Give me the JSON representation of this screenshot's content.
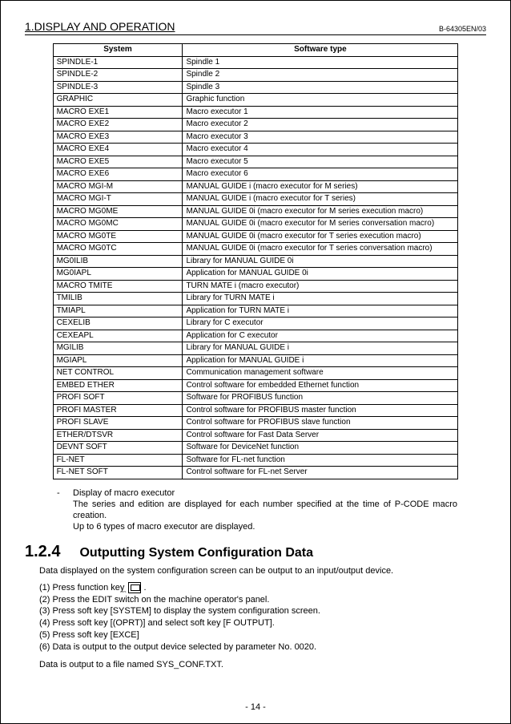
{
  "header": {
    "section_title": "1.DISPLAY AND OPERATION",
    "doc_id": "B-64305EN/03"
  },
  "table": {
    "headers": {
      "col1": "System",
      "col2": "Software type"
    },
    "rows": [
      {
        "sys": "SPINDLE-1",
        "desc": "Spindle 1"
      },
      {
        "sys": "SPINDLE-2",
        "desc": "Spindle 2"
      },
      {
        "sys": "SPINDLE-3",
        "desc": "Spindle 3"
      },
      {
        "sys": "GRAPHIC",
        "desc": "Graphic function"
      },
      {
        "sys": "MACRO EXE1",
        "desc": "Macro executor 1"
      },
      {
        "sys": "MACRO EXE2",
        "desc": "Macro executor 2"
      },
      {
        "sys": "MACRO EXE3",
        "desc": "Macro executor 3"
      },
      {
        "sys": "MACRO EXE4",
        "desc": "Macro executor 4"
      },
      {
        "sys": "MACRO EXE5",
        "desc": "Macro executor 5"
      },
      {
        "sys": "MACRO EXE6",
        "desc": "Macro executor 6"
      },
      {
        "sys": "MACRO MGI-M",
        "desc": "MANUAL GUIDE i (macro executor for M series)"
      },
      {
        "sys": "MACRO MGI-T",
        "desc": "MANUAL GUIDE i (macro executor for T series)"
      },
      {
        "sys": "MACRO MG0ME",
        "desc": "MANUAL GUIDE 0i (macro executor for M series execution macro)"
      },
      {
        "sys": "MACRO MG0MC",
        "desc": "MANUAL GUIDE 0i (macro executor for M series conversation macro)"
      },
      {
        "sys": "MACRO MG0TE",
        "desc": "MANUAL GUIDE 0i (macro executor for T series execution macro)"
      },
      {
        "sys": "MACRO MG0TC",
        "desc": "MANUAL GUIDE 0i (macro executor for T series conversation macro)"
      },
      {
        "sys": "MG0ILIB",
        "desc": "Library for MANUAL GUIDE 0i"
      },
      {
        "sys": "MG0IAPL",
        "desc": "Application for MANUAL GUIDE 0i"
      },
      {
        "sys": "MACRO TMITE",
        "desc": "TURN MATE i (macro executor)"
      },
      {
        "sys": "TMILIB",
        "desc": "Library for TURN MATE i"
      },
      {
        "sys": "TMIAPL",
        "desc": "Application for TURN MATE i"
      },
      {
        "sys": "CEXELIB",
        "desc": "Library for C executor"
      },
      {
        "sys": "CEXEAPL",
        "desc": "Application for C executor"
      },
      {
        "sys": "MGILIB",
        "desc": "Library for MANUAL GUIDE i"
      },
      {
        "sys": "MGIAPL",
        "desc": "Application for MANUAL GUIDE i"
      },
      {
        "sys": "NET CONTROL",
        "desc": "Communication management software"
      },
      {
        "sys": "EMBED ETHER",
        "desc": "Control software for embedded Ethernet function"
      },
      {
        "sys": "PROFI SOFT",
        "desc": "Software for PROFIBUS function"
      },
      {
        "sys": "PROFI MASTER",
        "desc": "Control software for PROFIBUS master function"
      },
      {
        "sys": "PROFI SLAVE",
        "desc": "Control software for PROFIBUS slave function"
      },
      {
        "sys": "ETHER/DTSVR",
        "desc": "Control software for Fast Data Server"
      },
      {
        "sys": "DEVNT SOFT",
        "desc": "Software for DeviceNet function"
      },
      {
        "sys": "FL-NET",
        "desc": "Software for FL-net function"
      },
      {
        "sys": "FL-NET SOFT",
        "desc": "Control software for FL-net Server"
      }
    ]
  },
  "note": {
    "dash": "-",
    "title": "Display of macro executor",
    "line1": "The series and edition are displayed for each number specified at the time of P-CODE macro creation.",
    "line2": "Up to 6 types of macro executor are displayed."
  },
  "subsection": {
    "number": "1.2.4",
    "title": "Outputting System Configuration Data"
  },
  "intro": "Data displayed on the system configuration screen can be output to an input/output device.",
  "steps": [
    "(1)  Press function key ",
    "(2)  Press the EDIT switch on the machine operator's panel.",
    "(3)  Press soft key [SYSTEM] to display the system configuration screen.",
    "(4)  Press soft key [(OPRT)] and select soft key [F OUTPUT].",
    "(5)  Press soft key [EXCE]",
    "(6)  Data is output to the output device selected by parameter No. 0020."
  ],
  "outro": "Data is output to a file named SYS_CONF.TXT.",
  "page_number": "- 14 -"
}
